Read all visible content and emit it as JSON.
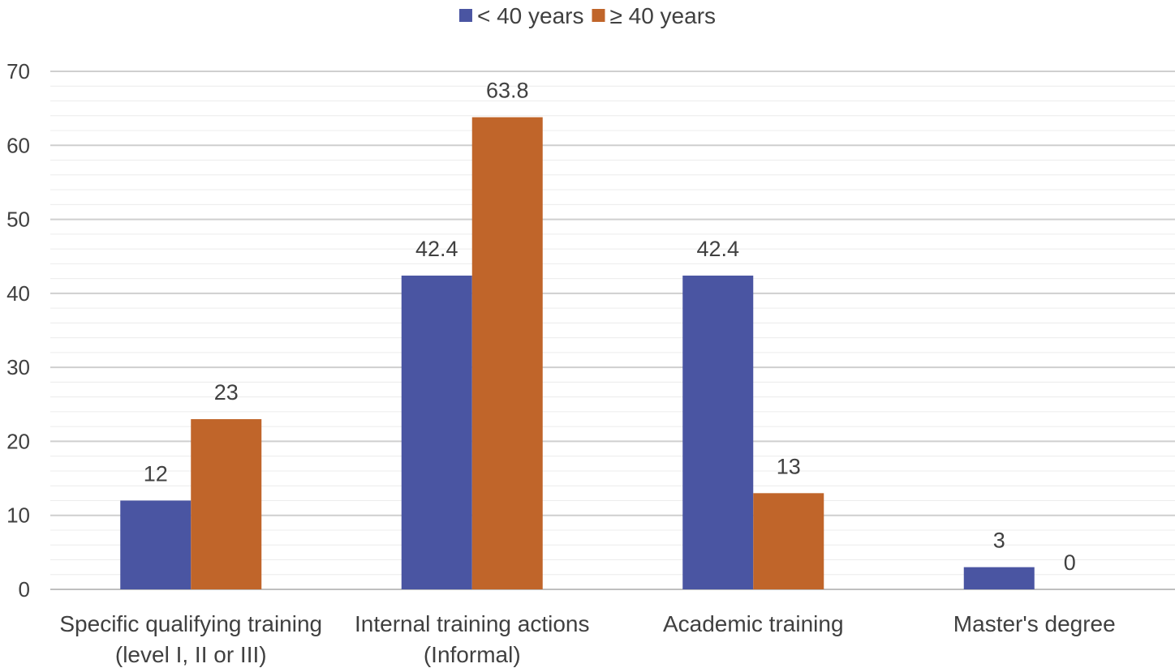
{
  "chart_data": {
    "type": "bar",
    "categories": [
      [
        "Specific qualifying training",
        "(level I, II or III)"
      ],
      [
        "Internal training actions",
        "(Informal)"
      ],
      [
        "Academic training"
      ],
      [
        "Master's degree"
      ]
    ],
    "series": [
      {
        "name": "< 40 years",
        "color": "#4a55a2",
        "values": [
          12,
          42.4,
          42.4,
          3
        ]
      },
      {
        "name": "≥ 40 years",
        "color": "#c0652a",
        "values": [
          23,
          63.8,
          13,
          0
        ]
      }
    ],
    "data_labels": [
      [
        "12",
        "42.4",
        "42.4",
        "3"
      ],
      [
        "23",
        "63.8",
        "13",
        "0"
      ]
    ],
    "y_ticks": [
      "0",
      "10",
      "20",
      "30",
      "40",
      "50",
      "60",
      "70"
    ],
    "ylim": [
      0,
      70
    ],
    "y_major_step": 10,
    "y_minor_step": 2,
    "grid": true,
    "legend_position": "top-center",
    "title": "",
    "xlabel": "",
    "ylabel": ""
  }
}
